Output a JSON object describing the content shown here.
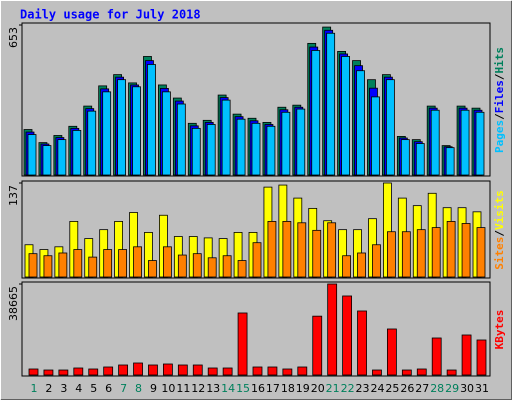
{
  "chart_data": [
    {
      "type": "bar",
      "title": "Daily usage for July 2018",
      "separator": "/",
      "ylim": [
        0,
        653
      ],
      "yticks": [
        653
      ],
      "series": [
        {
          "name": "Hits",
          "color": "#00805c",
          "values": [
            198,
            141,
            172,
            212,
            300,
            388,
            437,
            401,
            516,
            392,
            335,
            225,
            238,
            348,
            265,
            247,
            229,
            295,
            304,
            573,
            644,
            538,
            498,
            415,
            437,
            168,
            154,
            300,
            128,
            300,
            291
          ]
        },
        {
          "name": "Files",
          "color": "#0000ff",
          "values": [
            187,
            135,
            163,
            203,
            289,
            375,
            426,
            392,
            498,
            377,
            322,
            214,
            229,
            337,
            254,
            236,
            220,
            284,
            295,
            557,
            630,
            527,
            476,
            378,
            426,
            161,
            145,
            291,
            123,
            291,
            282
          ]
        },
        {
          "name": "Pages",
          "color": "#00c0ff",
          "values": [
            176,
            128,
            154,
            194,
            278,
            362,
            415,
            384,
            481,
            362,
            309,
            203,
            220,
            326,
            243,
            225,
            212,
            273,
            287,
            542,
            617,
            516,
            454,
            340,
            415,
            154,
            137,
            282,
            119,
            282,
            273
          ]
        }
      ]
    },
    {
      "type": "bar",
      "separator": "/",
      "ylim": [
        0,
        137
      ],
      "yticks": [
        137
      ],
      "series": [
        {
          "name": "Visits",
          "color": "#ffff00",
          "values": [
            47,
            40,
            44,
            81,
            56,
            69,
            81,
            94,
            65,
            90,
            59,
            59,
            57,
            56,
            65,
            65,
            131,
            134,
            115,
            100,
            82,
            69,
            69,
            85,
            137,
            115,
            104,
            122,
            101,
            101,
            95
          ]
        },
        {
          "name": "Sites",
          "color": "#ff8000",
          "values": [
            34,
            31,
            35,
            40,
            29,
            40,
            40,
            44,
            24,
            44,
            32,
            34,
            28,
            31,
            24,
            50,
            81,
            81,
            79,
            68,
            79,
            31,
            35,
            47,
            66,
            66,
            69,
            72,
            81,
            78,
            72
          ]
        }
      ]
    },
    {
      "type": "bar",
      "ylim": [
        0,
        38665
      ],
      "yticks": [
        38665
      ],
      "categories": [
        "1",
        "2",
        "3",
        "4",
        "5",
        "6",
        "7",
        "8",
        "9",
        "10",
        "11",
        "12",
        "13",
        "14",
        "15",
        "16",
        "17",
        "18",
        "19",
        "20",
        "21",
        "22",
        "23",
        "24",
        "25",
        "26",
        "27",
        "28",
        "29",
        "30",
        "31"
      ],
      "category_colors": [
        "#00805c",
        "#000000",
        "#000000",
        "#000000",
        "#000000",
        "#000000",
        "#00805c",
        "#00805c",
        "#000000",
        "#000000",
        "#000000",
        "#000000",
        "#000000",
        "#00805c",
        "#00805c",
        "#000000",
        "#000000",
        "#000000",
        "#000000",
        "#000000",
        "#00805c",
        "#00805c",
        "#000000",
        "#000000",
        "#000000",
        "#000000",
        "#000000",
        "#00805c",
        "#00805c",
        "#000000",
        "#000000"
      ],
      "series": [
        {
          "name": "KBytes",
          "color": "#ff0000",
          "values": [
            2550,
            2120,
            2120,
            2975,
            2550,
            3400,
            4250,
            5100,
            4250,
            4675,
            4250,
            4250,
            2975,
            2975,
            26350,
            3400,
            3400,
            2550,
            3400,
            25000,
            38665,
            33575,
            27200,
            2120,
            19550,
            2120,
            2550,
            15725,
            2120,
            17000,
            14875
          ]
        }
      ]
    }
  ]
}
